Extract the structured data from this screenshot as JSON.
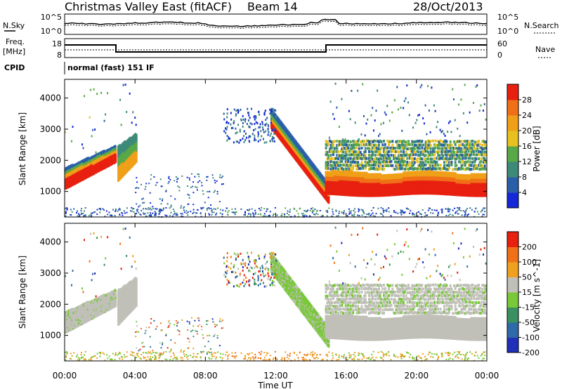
{
  "header": {
    "title": "Christmas Valley East (fitACF)",
    "beam": "Beam 14",
    "date": "28/Oct/2013"
  },
  "top_strip": {
    "left_label": "N.Sky",
    "left_ticks": [
      "10^5",
      "10^0"
    ],
    "right_ticks": [
      "10^5",
      "10^0"
    ],
    "right_label": "N.Search"
  },
  "freq_strip": {
    "left_label_1": "Freq.",
    "left_label_2": "[MHz]",
    "left_ticks": [
      "18",
      "8"
    ],
    "right_ticks": [
      "60",
      "0"
    ],
    "right_label": "Nave"
  },
  "cpid": {
    "label": "CPID",
    "value": "normal (fast) 151 IF"
  },
  "x_axis": {
    "label": "Time UT",
    "ticks": [
      "00:00",
      "04:00",
      "08:00",
      "12:00",
      "16:00",
      "20:00",
      "00:00"
    ]
  },
  "chart_data": [
    {
      "type": "heatmap",
      "title": "",
      "xlabel": "Time UT",
      "ylabel": "Slant Range [km]",
      "x_range_hours": [
        0,
        24
      ],
      "ylim": [
        180,
        4600
      ],
      "y_ticks": [
        "1000",
        "2000",
        "3000",
        "4000"
      ],
      "y_tick_values": [
        1000,
        2000,
        3000,
        4000
      ],
      "colorbar": {
        "label": "Power [dB]",
        "ticks": [
          "4",
          "8",
          "12",
          "16",
          "20",
          "24",
          "28"
        ],
        "colors": [
          "#1428d8",
          "#2a5fa8",
          "#3e8a78",
          "#58a848",
          "#e8c020",
          "#f0a018",
          "#f07018",
          "#e82010"
        ]
      }
    },
    {
      "type": "heatmap",
      "title": "",
      "xlabel": "Time UT",
      "ylabel": "Slant Range [km]",
      "x_range_hours": [
        0,
        24
      ],
      "ylim": [
        180,
        4600
      ],
      "y_ticks": [
        "1000",
        "2000",
        "3000",
        "4000"
      ],
      "y_tick_values": [
        1000,
        2000,
        3000,
        4000
      ],
      "colorbar": {
        "label": "Velocity [m s^-1]",
        "ticks": [
          "200",
          "100",
          "50",
          "15",
          "-15",
          "-50",
          "-100",
          "-200"
        ],
        "colors": [
          "#2030b8",
          "#2e6aa8",
          "#3a9060",
          "#78c838",
          "#c0c0b8",
          "#f0a020",
          "#f07018",
          "#e82010"
        ]
      }
    }
  ]
}
